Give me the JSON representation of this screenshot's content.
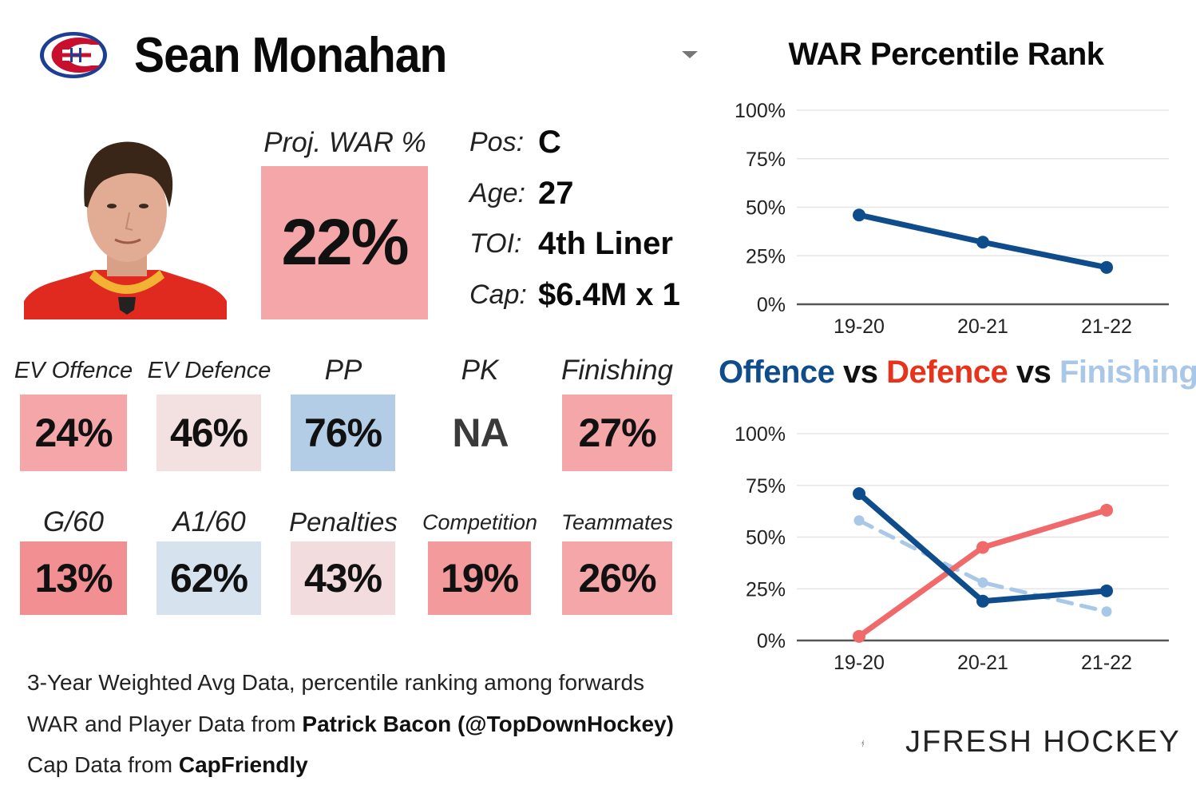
{
  "header": {
    "player_name": "Sean Monahan",
    "team_logo": "habs-logo-icon",
    "dropdown_icon": "chevron-down-icon"
  },
  "projection": {
    "label": "Proj. WAR %",
    "value": "22%",
    "color": "#f4a6a8"
  },
  "info": [
    {
      "label": "Pos:",
      "value": "C"
    },
    {
      "label": "Age:",
      "value": "27"
    },
    {
      "label": "TOI:",
      "value": "4th Liner"
    },
    {
      "label": "Cap:",
      "value": "$6.4M x 1"
    }
  ],
  "metrics_row1": [
    {
      "label": "EV Offence",
      "value": "24%",
      "color": "#f4a6a8"
    },
    {
      "label": "EV Defence",
      "value": "46%",
      "color": "#f3e1e2"
    },
    {
      "label": "PP",
      "value": "76%",
      "color": "#b3cde6"
    },
    {
      "label": "PK",
      "value": "NA",
      "color": "#ffffff"
    },
    {
      "label": "Finishing",
      "value": "27%",
      "color": "#f4a6a8"
    }
  ],
  "metrics_row2": [
    {
      "label": "G/60",
      "value": "13%",
      "color": "#f28f92"
    },
    {
      "label": "A1/60",
      "value": "62%",
      "color": "#d6e2ee"
    },
    {
      "label": "Penalties",
      "value": "43%",
      "color": "#f3dcdd"
    },
    {
      "label": "Competition",
      "value": "19%",
      "color": "#f39a9c"
    },
    {
      "label": "Teammates",
      "value": "26%",
      "color": "#f4a6a8"
    }
  ],
  "footnotes": {
    "line1": "3-Year Weighted Avg Data, percentile ranking among forwards",
    "line2_prefix": "WAR and Player Data from ",
    "line2_bold": "Patrick Bacon (@TopDownHockey)",
    "line3_prefix": "Cap Data from ",
    "line3_bold": "CapFriendly"
  },
  "charts_titles": {
    "war": "WAR Percentile Rank",
    "ovd_offence": "Offence",
    "ovd_vs1": " vs ",
    "ovd_defence": "Defence",
    "ovd_vs2": " vs ",
    "ovd_finishing": "Finishing"
  },
  "colors": {
    "offence": "#0f4c8c",
    "defence": "#f06a6c",
    "defence_title": "#e8331c",
    "finishing": "#a9c7e6",
    "axis": "#555555",
    "grid": "#e6e6e6"
  },
  "brand": {
    "text": "JFRESH HOCKEY",
    "icon": "jfresh-logo-icon"
  },
  "chart_data": [
    {
      "type": "line",
      "title": "WAR Percentile Rank",
      "categories": [
        "19-20",
        "20-21",
        "21-22"
      ],
      "yticks": [
        "0%",
        "25%",
        "50%",
        "75%",
        "100%"
      ],
      "ylim": [
        0,
        100
      ],
      "series": [
        {
          "name": "WAR",
          "values": [
            46,
            32,
            19
          ],
          "color": "#0f4c8c",
          "dashed": false
        }
      ]
    },
    {
      "type": "line",
      "title": "Offence vs Defence vs Finishing",
      "categories": [
        "19-20",
        "20-21",
        "21-22"
      ],
      "yticks": [
        "0%",
        "25%",
        "50%",
        "75%",
        "100%"
      ],
      "ylim": [
        0,
        100
      ],
      "series": [
        {
          "name": "Finishing",
          "values": [
            58,
            28,
            14
          ],
          "color": "#a9c7e6",
          "dashed": true
        },
        {
          "name": "Defence",
          "values": [
            2,
            45,
            63
          ],
          "color": "#f06a6c",
          "dashed": false
        },
        {
          "name": "Offence",
          "values": [
            71,
            19,
            24
          ],
          "color": "#0f4c8c",
          "dashed": false
        }
      ]
    }
  ]
}
